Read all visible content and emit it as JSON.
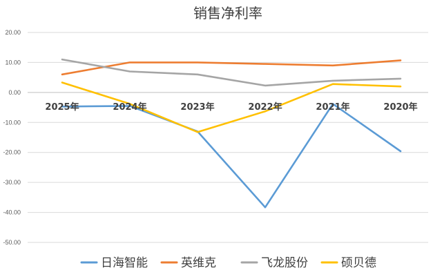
{
  "chart_data": {
    "type": "line",
    "title": "销售净利率",
    "categories": [
      "2025年",
      "2024年",
      "2023年",
      "2022年",
      "2021年",
      "2020年"
    ],
    "yticks": [
      "20.00",
      "10.00",
      "0.00",
      "-10.00",
      "-20.00",
      "-30.00",
      "-40.00",
      "-50.00"
    ],
    "ylim": [
      -50,
      20
    ],
    "grid": true,
    "legend_position": "bottom",
    "series": [
      {
        "name": "日海智能",
        "color": "#5b9bd5",
        "values": [
          -4.7,
          -4.5,
          -13.0,
          -38.3,
          -3.8,
          -19.6
        ]
      },
      {
        "name": "英维克",
        "color": "#ed7d31",
        "values": [
          6.0,
          10.0,
          10.0,
          9.5,
          9.0,
          10.7
        ]
      },
      {
        "name": "飞龙股份",
        "color": "#a5a5a5",
        "values": [
          11.0,
          7.0,
          6.0,
          2.3,
          3.9,
          4.6
        ]
      },
      {
        "name": "硕贝德",
        "color": "#ffc000",
        "values": [
          3.3,
          -3.8,
          -13.2,
          -6.3,
          2.8,
          2.0
        ]
      }
    ]
  }
}
